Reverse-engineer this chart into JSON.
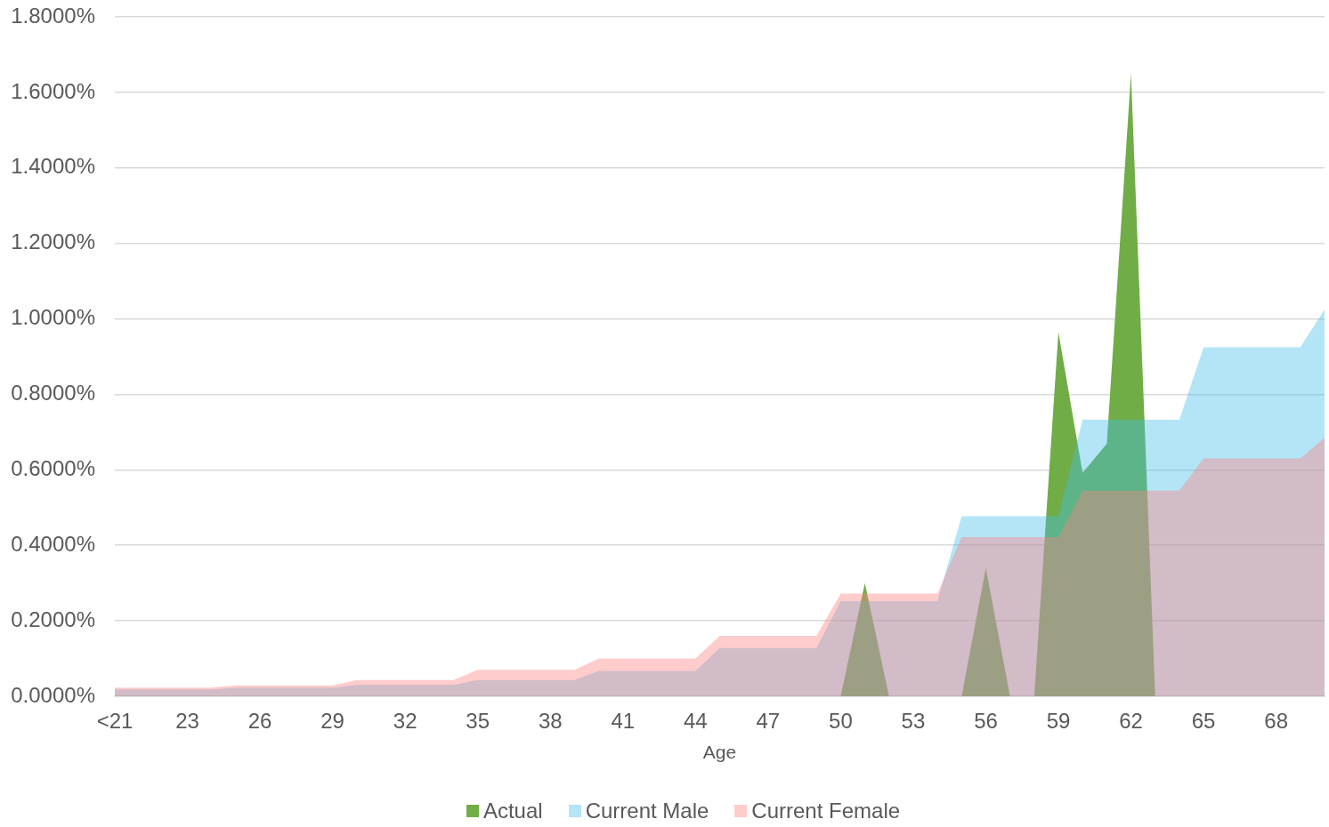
{
  "chart_data": {
    "type": "area",
    "xlabel": "Age",
    "categories": [
      "<21",
      null,
      null,
      "23",
      null,
      null,
      "26",
      null,
      null,
      "29",
      null,
      null,
      "32",
      null,
      null,
      "35",
      null,
      null,
      "38",
      null,
      null,
      "41",
      null,
      null,
      "44",
      null,
      null,
      "47",
      null,
      null,
      "50",
      null,
      null,
      "53",
      null,
      null,
      "56",
      null,
      null,
      "59",
      null,
      null,
      "62",
      null,
      null,
      "65",
      null,
      null,
      "68",
      null,
      null
    ],
    "series": [
      {
        "name": "Actual",
        "color": "#70ad47",
        "values": [
          0,
          0,
          0,
          0,
          0,
          0,
          0,
          0,
          0,
          0,
          0,
          0,
          0,
          0,
          0,
          0,
          0,
          0,
          0,
          0,
          0,
          0,
          0,
          0,
          0,
          0,
          0,
          0,
          0,
          0,
          0,
          0.3,
          0,
          0,
          0,
          0,
          0.34,
          0,
          0,
          0.965,
          0.592,
          0.669,
          1.65,
          0,
          0,
          0,
          0,
          0,
          0,
          0,
          0
        ]
      },
      {
        "name": "Current Male",
        "color": "#b3e5f7",
        "values": [
          0.018,
          0.018,
          0.018,
          0.018,
          0.018,
          0.023,
          0.023,
          0.023,
          0.023,
          0.023,
          0.03,
          0.03,
          0.03,
          0.03,
          0.03,
          0.043,
          0.043,
          0.043,
          0.043,
          0.043,
          0.067,
          0.067,
          0.067,
          0.067,
          0.067,
          0.128,
          0.128,
          0.128,
          0.128,
          0.128,
          0.252,
          0.252,
          0.252,
          0.252,
          0.252,
          0.477,
          0.477,
          0.477,
          0.477,
          0.477,
          0.733,
          0.733,
          0.733,
          0.733,
          0.733,
          0.925,
          0.925,
          0.925,
          0.925,
          0.925,
          1.025
        ]
      },
      {
        "name": "Current Female",
        "color": "#ffcccc",
        "values": [
          0.023,
          0.023,
          0.023,
          0.023,
          0.023,
          0.029,
          0.029,
          0.029,
          0.029,
          0.029,
          0.043,
          0.043,
          0.043,
          0.043,
          0.043,
          0.07,
          0.07,
          0.07,
          0.07,
          0.07,
          0.1,
          0.1,
          0.1,
          0.1,
          0.1,
          0.16,
          0.16,
          0.16,
          0.16,
          0.16,
          0.272,
          0.272,
          0.272,
          0.272,
          0.272,
          0.422,
          0.422,
          0.422,
          0.422,
          0.422,
          0.545,
          0.545,
          0.545,
          0.545,
          0.545,
          0.63,
          0.63,
          0.63,
          0.63,
          0.63,
          0.685
        ]
      }
    ],
    "ylim": [
      0,
      1.8
    ],
    "yticks": [
      {
        "value": 0,
        "label": "0.0000%"
      },
      {
        "value": 0.2,
        "label": "0.2000%"
      },
      {
        "value": 0.4,
        "label": "0.4000%"
      },
      {
        "value": 0.6,
        "label": "0.6000%"
      },
      {
        "value": 0.8,
        "label": "0.8000%"
      },
      {
        "value": 1,
        "label": "1.0000%"
      },
      {
        "value": 1.2,
        "label": "1.2000%"
      },
      {
        "value": 1.4,
        "label": "1.4000%"
      },
      {
        "value": 1.6,
        "label": "1.6000%"
      },
      {
        "value": 1.8,
        "label": "1.8000%"
      }
    ],
    "grid": "y",
    "legend": "bottom"
  }
}
